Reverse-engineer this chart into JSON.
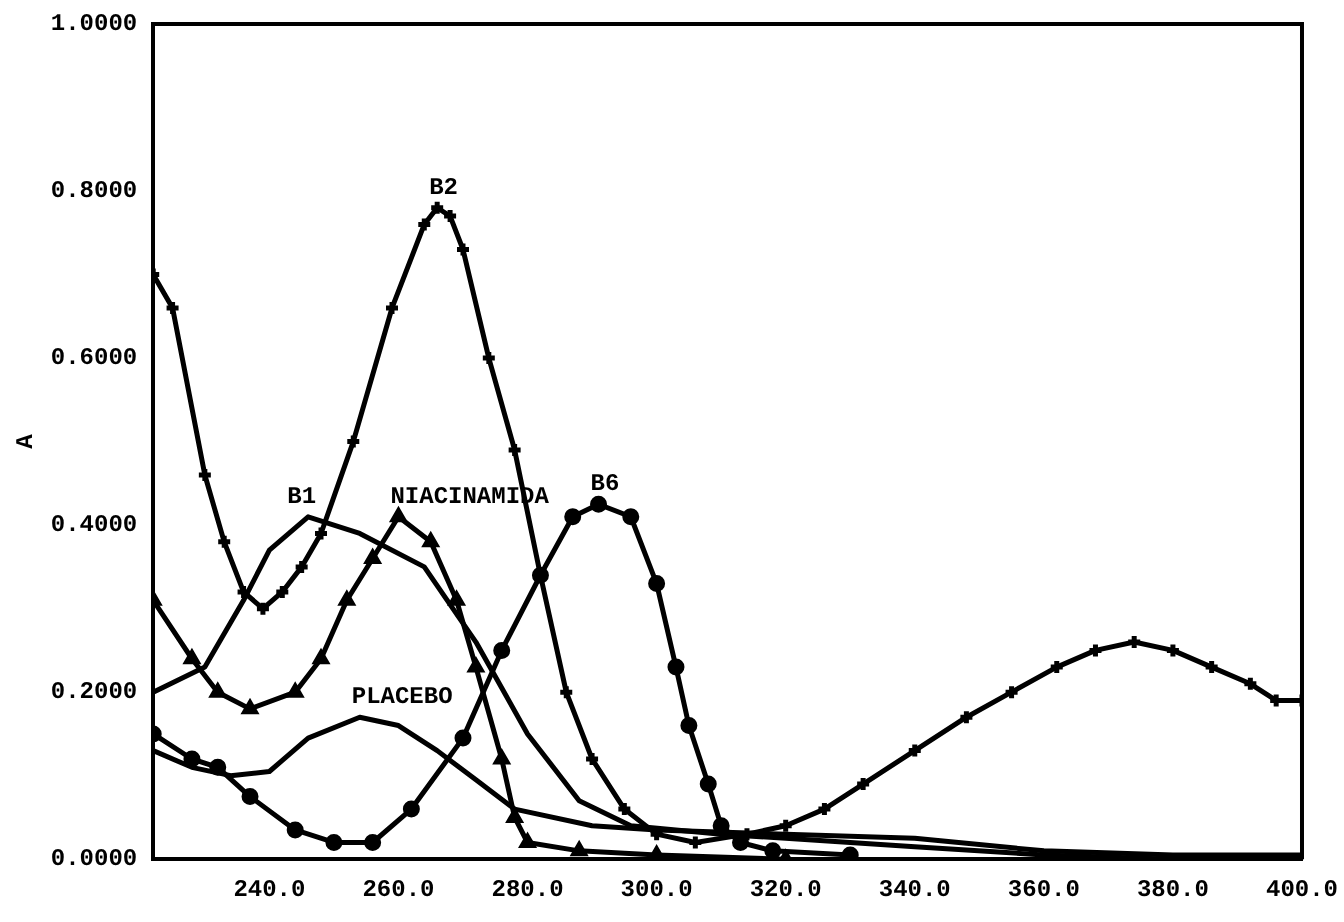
{
  "chart_data": {
    "type": "line",
    "ylabel": "A",
    "xlim": [
      222,
      400
    ],
    "ylim": [
      0,
      1
    ],
    "xticks": [
      {
        "value": 240,
        "label": "240.0"
      },
      {
        "value": 260,
        "label": "260.0"
      },
      {
        "value": 280,
        "label": "280.0"
      },
      {
        "value": 300,
        "label": "300.0"
      },
      {
        "value": 320,
        "label": "320.0"
      },
      {
        "value": 340,
        "label": "340.0"
      },
      {
        "value": 360,
        "label": "360.0"
      },
      {
        "value": 380,
        "label": "380.0"
      },
      {
        "value": 400,
        "label": "400.0"
      }
    ],
    "yticks": [
      {
        "value": 0,
        "label": "0.0000"
      },
      {
        "value": 0.2,
        "label": "0.2000"
      },
      {
        "value": 0.4,
        "label": "0.4000"
      },
      {
        "value": 0.6,
        "label": "0.6000"
      },
      {
        "value": 0.8,
        "label": "0.8000"
      },
      {
        "value": 1,
        "label": "1.0000"
      }
    ],
    "grid": false,
    "legend": false,
    "series": [
      {
        "name": "B2",
        "color": "#000000",
        "marker": "cross",
        "x": [
          222,
          225,
          230,
          233,
          236,
          239,
          242,
          245,
          248,
          253,
          259,
          264,
          266,
          268,
          270,
          274,
          278,
          282,
          286,
          290,
          295,
          300,
          306,
          314,
          320,
          326,
          332,
          340,
          348,
          355,
          362,
          368,
          374,
          380,
          386,
          392,
          396,
          400
        ],
        "values": [
          0.7,
          0.66,
          0.46,
          0.38,
          0.32,
          0.3,
          0.32,
          0.35,
          0.39,
          0.5,
          0.66,
          0.76,
          0.78,
          0.77,
          0.73,
          0.6,
          0.49,
          0.34,
          0.2,
          0.12,
          0.06,
          0.03,
          0.02,
          0.03,
          0.04,
          0.06,
          0.09,
          0.13,
          0.17,
          0.2,
          0.23,
          0.25,
          0.26,
          0.25,
          0.23,
          0.21,
          0.19,
          0.19
        ]
      },
      {
        "name": "B1",
        "color": "#000000",
        "marker": "none",
        "x": [
          222,
          230,
          236,
          240,
          246,
          254,
          264,
          272,
          280,
          288,
          296,
          310,
          320,
          340,
          360,
          380,
          400
        ],
        "values": [
          0.2,
          0.23,
          0.31,
          0.37,
          0.41,
          0.39,
          0.35,
          0.26,
          0.15,
          0.07,
          0.04,
          0.03,
          0.025,
          0.015,
          0.005,
          0,
          0
        ]
      },
      {
        "name": "NIACINAMIDA",
        "color": "#000000",
        "marker": "triangle",
        "x": [
          222,
          228,
          232,
          237,
          244,
          248,
          252,
          256,
          260,
          265,
          269,
          272,
          276,
          278,
          280,
          288,
          300,
          320
        ],
        "values": [
          0.31,
          0.24,
          0.2,
          0.18,
          0.2,
          0.24,
          0.31,
          0.36,
          0.41,
          0.38,
          0.31,
          0.23,
          0.12,
          0.05,
          0.02,
          0.01,
          0.005,
          0
        ]
      },
      {
        "name": "B6",
        "color": "#000000",
        "marker": "circle",
        "x": [
          222,
          228,
          232,
          237,
          244,
          250,
          256,
          262,
          270,
          276,
          282,
          287,
          291,
          296,
          300,
          303,
          305,
          308,
          310,
          313,
          318,
          330
        ],
        "values": [
          0.15,
          0.12,
          0.11,
          0.075,
          0.035,
          0.02,
          0.02,
          0.06,
          0.145,
          0.25,
          0.34,
          0.41,
          0.425,
          0.41,
          0.33,
          0.23,
          0.16,
          0.09,
          0.04,
          0.02,
          0.01,
          0.005
        ]
      },
      {
        "name": "PLACEBO",
        "color": "#000000",
        "marker": "none",
        "x": [
          222,
          228,
          234,
          240,
          246,
          254,
          260,
          266,
          272,
          278,
          290,
          300,
          320,
          340,
          360,
          380,
          400
        ],
        "values": [
          0.13,
          0.11,
          0.1,
          0.105,
          0.145,
          0.17,
          0.16,
          0.13,
          0.095,
          0.06,
          0.04,
          0.035,
          0.03,
          0.025,
          0.01,
          0.005,
          0.005
        ]
      }
    ]
  }
}
